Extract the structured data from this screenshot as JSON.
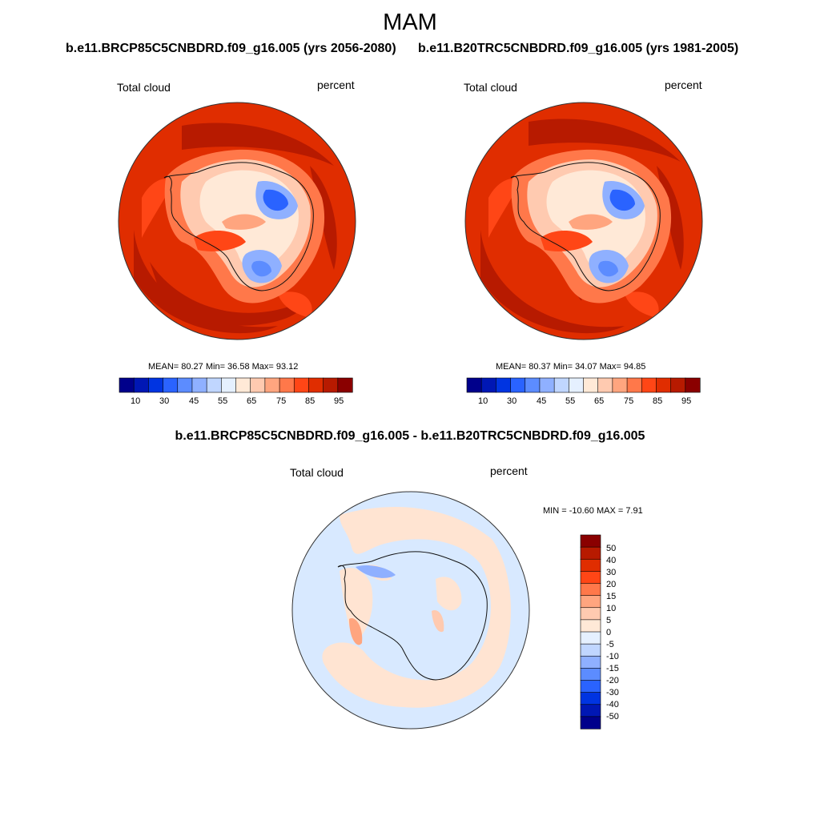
{
  "page": {
    "title": "MAM"
  },
  "panels": [
    {
      "case": "b.e11.BRCP85C5CNBDRD.f09_g16.005 (yrs 2056-2080)",
      "field": "Total cloud",
      "units": "percent",
      "stats_text": "MEAN=  80.27  Min=  36.58  Max=  93.12",
      "mean": 80.27,
      "min": 36.58,
      "max": 93.12
    },
    {
      "case": "b.e11.B20TRC5CNBDRD.f09_g16.005 (yrs 1981-2005)",
      "field": "Total cloud",
      "units": "percent",
      "stats_text": "MEAN=  80.37  Min=  34.07  Max=  94.85",
      "mean": 80.37,
      "min": 34.07,
      "max": 94.85
    }
  ],
  "colorbar_abs": {
    "tick_labels": [
      "10",
      "30",
      "45",
      "55",
      "65",
      "75",
      "85",
      "95"
    ],
    "colors": [
      "#00008b",
      "#0017b4",
      "#0034e1",
      "#2a63ff",
      "#5c8cff",
      "#8fb0ff",
      "#c0d6ff",
      "#e5f0ff",
      "#ffe9d7",
      "#ffcab0",
      "#ffa57f",
      "#ff784a",
      "#ff4616",
      "#e02d00",
      "#b71a00",
      "#8a0000"
    ]
  },
  "difference": {
    "title": "b.e11.BRCP85C5CNBDRD.f09_g16.005 - b.e11.B20TRC5CNBDRD.f09_g16.005",
    "field": "Total cloud",
    "units": "percent",
    "stats_text": "MIN = -10.60 MAX =   7.91",
    "min": -10.6,
    "max": 7.91
  },
  "colorbar_diff": {
    "tick_labels": [
      "50",
      "40",
      "30",
      "20",
      "15",
      "10",
      "5",
      "0",
      "-5",
      "-10",
      "-15",
      "-20",
      "-30",
      "-40",
      "-50"
    ],
    "colors": [
      "#8a0000",
      "#b71a00",
      "#e02d00",
      "#ff4616",
      "#ff784a",
      "#ffa57f",
      "#ffcab0",
      "#ffe9d7",
      "#e5f0ff",
      "#c0d6ff",
      "#8fb0ff",
      "#5c8cff",
      "#2a63ff",
      "#0034e1",
      "#0017b4",
      "#00008b"
    ]
  }
}
